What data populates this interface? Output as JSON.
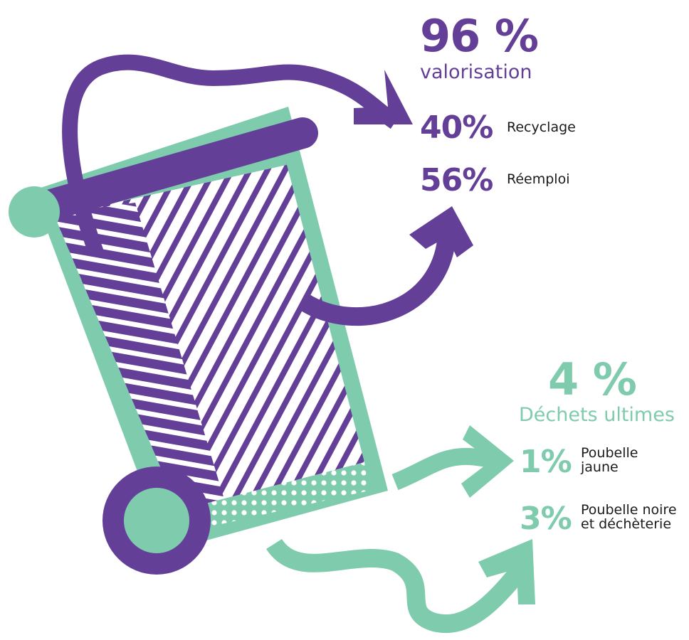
{
  "colors": {
    "purple": "#643f98",
    "green": "#7fcbad"
  },
  "valorisation": {
    "headline": "96 %",
    "subtitle": "valorisation",
    "items": [
      {
        "value": "40%",
        "label": "Recyclage"
      },
      {
        "value": "56%",
        "label": "Réemploi"
      }
    ]
  },
  "dechets": {
    "headline": "4 %",
    "subtitle": "Déchets ultimes",
    "items": [
      {
        "value": "1%",
        "label": "Poubelle jaune"
      },
      {
        "value": "3%",
        "label": "Poubelle noire et déchèterie"
      }
    ]
  },
  "icons": [
    "wheelie-bin-icon",
    "curved-arrow-icon"
  ]
}
